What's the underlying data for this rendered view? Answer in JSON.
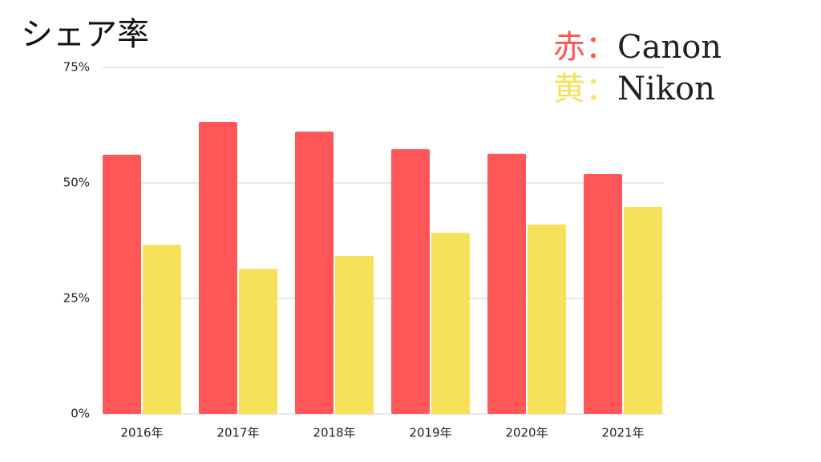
{
  "chart_data": {
    "type": "bar",
    "title": "シェア率",
    "categories": [
      "2016年",
      "2017年",
      "2018年",
      "2019年",
      "2020年",
      "2021年"
    ],
    "series": [
      {
        "name": "Canon",
        "legend_prefix": "赤：",
        "color": "#ff5757",
        "values": [
          56.1,
          63.2,
          61.1,
          57.3,
          56.3,
          51.9
        ]
      },
      {
        "name": "Nikon",
        "legend_prefix": "黄：",
        "color": "#f7e15a",
        "values": [
          36.6,
          31.4,
          34.2,
          39.2,
          41.0,
          44.8
        ]
      }
    ],
    "ylim": [
      0,
      75
    ],
    "yticks": [
      {
        "value": 0,
        "label": "0%"
      },
      {
        "value": 25,
        "label": "25%"
      },
      {
        "value": 50,
        "label": "50%"
      },
      {
        "value": 75,
        "label": "75%"
      }
    ],
    "grid": true
  }
}
